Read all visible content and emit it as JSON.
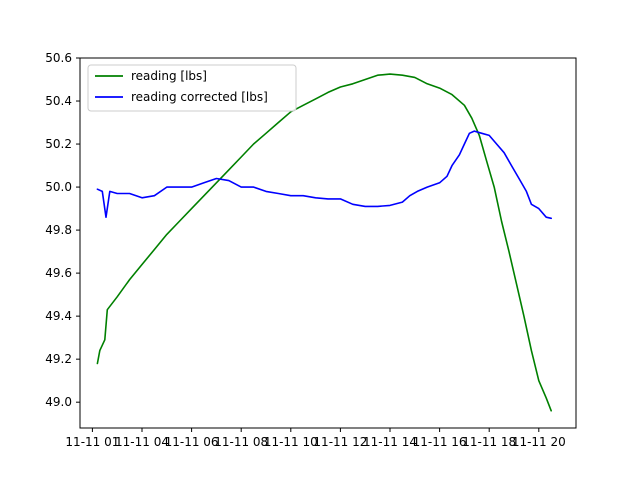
{
  "chart_data": {
    "type": "line",
    "title": "",
    "xlabel": "",
    "ylabel": "",
    "xlim": [
      0.5,
      20.5
    ],
    "ylim": [
      48.88,
      50.6
    ],
    "x_ticks": [
      {
        "x": 1,
        "label": "11-11 01"
      },
      {
        "x": 3,
        "label": "11-11 04"
      },
      {
        "x": 5,
        "label": "11-11 06"
      },
      {
        "x": 7,
        "label": "11-11 08"
      },
      {
        "x": 9,
        "label": "11-11 10"
      },
      {
        "x": 11,
        "label": "11-11 12"
      },
      {
        "x": 13,
        "label": "11-11 14"
      },
      {
        "x": 15,
        "label": "11-11 16"
      },
      {
        "x": 17,
        "label": "11-11 18"
      },
      {
        "x": 19,
        "label": "11-11 20"
      }
    ],
    "y_ticks": [
      "49.0",
      "49.2",
      "49.4",
      "49.6",
      "49.8",
      "50.0",
      "50.2",
      "50.4",
      "50.6"
    ],
    "grid": false,
    "legend_position": "top-left",
    "series": [
      {
        "name": "reading [lbs]",
        "color": "#008000",
        "points": [
          [
            1.2,
            49.18
          ],
          [
            1.3,
            49.24
          ],
          [
            1.5,
            49.29
          ],
          [
            1.6,
            49.43
          ],
          [
            2.0,
            49.49
          ],
          [
            2.5,
            49.57
          ],
          [
            3.0,
            49.64
          ],
          [
            3.5,
            49.71
          ],
          [
            4.0,
            49.78
          ],
          [
            4.5,
            49.84
          ],
          [
            5.0,
            49.9
          ],
          [
            5.5,
            49.96
          ],
          [
            6.0,
            50.02
          ],
          [
            6.5,
            50.08
          ],
          [
            7.0,
            50.14
          ],
          [
            7.5,
            50.2
          ],
          [
            8.0,
            50.25
          ],
          [
            8.5,
            50.3
          ],
          [
            9.0,
            50.35
          ],
          [
            9.5,
            50.38
          ],
          [
            10.0,
            50.41
          ],
          [
            10.5,
            50.44
          ],
          [
            11.0,
            50.465
          ],
          [
            11.5,
            50.48
          ],
          [
            12.0,
            50.5
          ],
          [
            12.5,
            50.52
          ],
          [
            13.0,
            50.525
          ],
          [
            13.5,
            50.52
          ],
          [
            14.0,
            50.51
          ],
          [
            14.5,
            50.48
          ],
          [
            15.0,
            50.46
          ],
          [
            15.5,
            50.43
          ],
          [
            16.0,
            50.38
          ],
          [
            16.3,
            50.32
          ],
          [
            16.6,
            50.24
          ],
          [
            16.9,
            50.12
          ],
          [
            17.2,
            50.0
          ],
          [
            17.5,
            49.84
          ],
          [
            17.8,
            49.7
          ],
          [
            18.1,
            49.55
          ],
          [
            18.4,
            49.4
          ],
          [
            18.7,
            49.24
          ],
          [
            19.0,
            49.1
          ],
          [
            19.3,
            49.02
          ],
          [
            19.5,
            48.96
          ]
        ]
      },
      {
        "name": "reading corrected [lbs]",
        "color": "#0000ff",
        "points": [
          [
            1.2,
            49.99
          ],
          [
            1.4,
            49.98
          ],
          [
            1.55,
            49.86
          ],
          [
            1.7,
            49.98
          ],
          [
            2.0,
            49.97
          ],
          [
            2.5,
            49.97
          ],
          [
            3.0,
            49.95
          ],
          [
            3.5,
            49.96
          ],
          [
            4.0,
            50.0
          ],
          [
            4.5,
            50.0
          ],
          [
            5.0,
            50.0
          ],
          [
            5.5,
            50.02
          ],
          [
            6.0,
            50.04
          ],
          [
            6.5,
            50.03
          ],
          [
            7.0,
            50.0
          ],
          [
            7.5,
            50.0
          ],
          [
            8.0,
            49.98
          ],
          [
            8.5,
            49.97
          ],
          [
            9.0,
            49.96
          ],
          [
            9.5,
            49.96
          ],
          [
            10.0,
            49.95
          ],
          [
            10.5,
            49.945
          ],
          [
            11.0,
            49.945
          ],
          [
            11.5,
            49.92
          ],
          [
            12.0,
            49.91
          ],
          [
            12.5,
            49.91
          ],
          [
            13.0,
            49.915
          ],
          [
            13.5,
            49.93
          ],
          [
            13.8,
            49.96
          ],
          [
            14.1,
            49.98
          ],
          [
            14.5,
            50.0
          ],
          [
            15.0,
            50.02
          ],
          [
            15.3,
            50.05
          ],
          [
            15.5,
            50.1
          ],
          [
            15.8,
            50.15
          ],
          [
            16.0,
            50.2
          ],
          [
            16.2,
            50.25
          ],
          [
            16.4,
            50.26
          ],
          [
            16.7,
            50.25
          ],
          [
            17.0,
            50.24
          ],
          [
            17.3,
            50.2
          ],
          [
            17.6,
            50.16
          ],
          [
            17.9,
            50.1
          ],
          [
            18.2,
            50.04
          ],
          [
            18.5,
            49.98
          ],
          [
            18.7,
            49.92
          ],
          [
            19.0,
            49.9
          ],
          [
            19.3,
            49.86
          ],
          [
            19.5,
            49.855
          ]
        ]
      }
    ]
  }
}
